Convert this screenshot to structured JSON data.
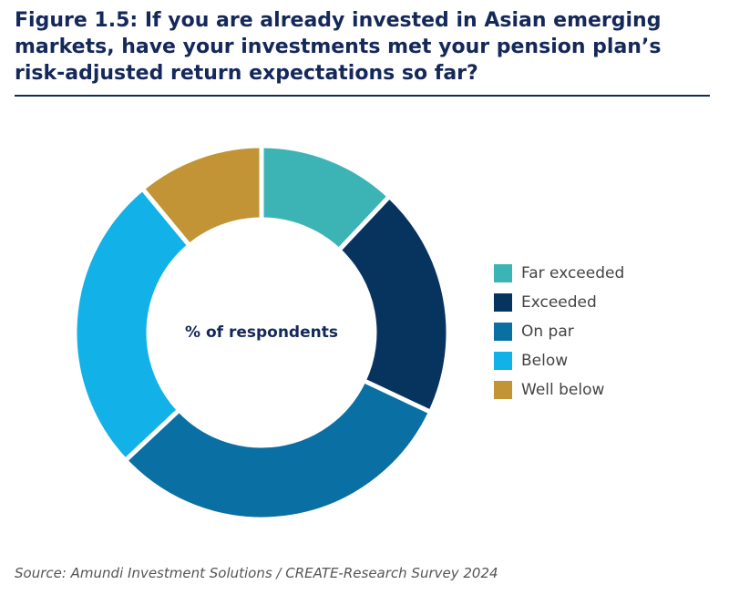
{
  "chart_data": {
    "type": "donut",
    "title": "Figure 1.5: If you are already invested in Asian emerging markets, have your investments met your pension plan’s risk-adjusted return expectations so far?",
    "center_label": "% of respondents",
    "categories": [
      "Far exceeded",
      "Exceeded",
      "On par",
      "Below",
      "Well below"
    ],
    "values": [
      12,
      20,
      31,
      26,
      11
    ],
    "colors": [
      "#3cb4b6",
      "#06345f",
      "#0a6fa3",
      "#12b1e8",
      "#c29436"
    ],
    "legend": "right",
    "source": "Source: Amundi Investment Solutions / CREATE-Research Survey 2024"
  }
}
